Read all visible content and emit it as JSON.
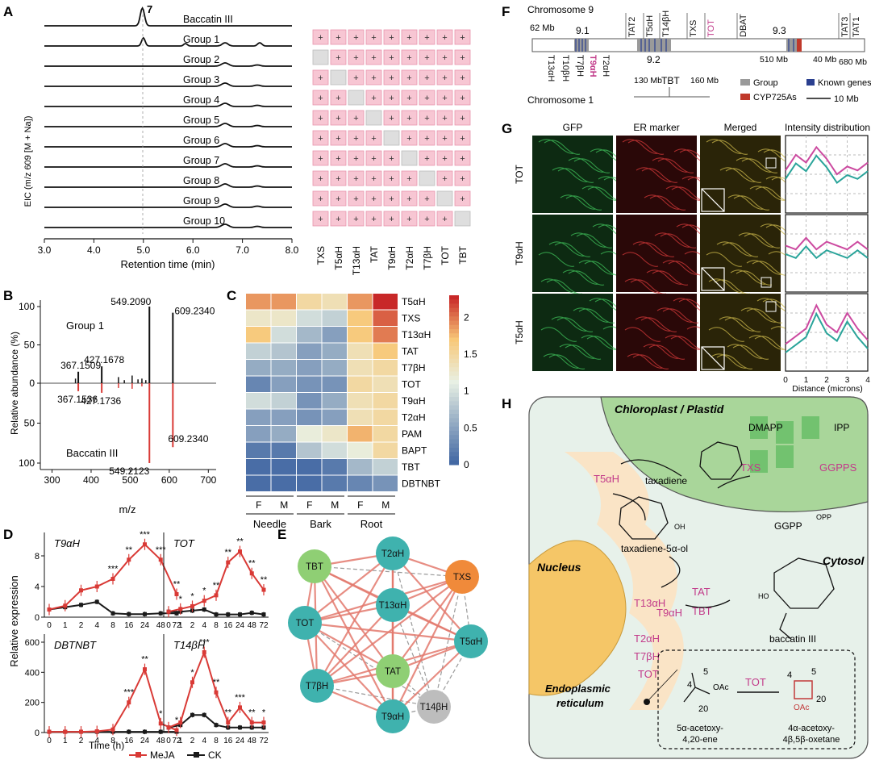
{
  "panels": {
    "A": {
      "label": "A",
      "rows": [
        "Baccatin III",
        "Group 1",
        "Group 2",
        "Group 3",
        "Group 4",
        "Group 5",
        "Group 6",
        "Group 7",
        "Group 8",
        "Group 9",
        "Group 10"
      ],
      "peak_label": "7",
      "ylabel": "EIC (m/z 609 [M + Na])",
      "xlabel": "Retention time (min)",
      "xticks": [
        "3.0",
        "4.0",
        "5.0",
        "6.0",
        "7.0",
        "8.0"
      ],
      "genes": [
        "TXS",
        "T5αH",
        "T13αH",
        "TAT",
        "T9αH",
        "T2αH",
        "T7βH",
        "TOT",
        "TBT"
      ],
      "cell_plus": "+",
      "plus_color": "#f7c6d3",
      "empty_color": "#dedede",
      "missing_index": [
        null,
        0,
        1,
        2,
        3,
        4,
        5,
        6,
        7,
        8
      ]
    },
    "B": {
      "label": "B",
      "top_label": "Group 1",
      "bottom_label": "Baccatin III",
      "ylabel": "Relative abundance (%)",
      "xlabel": "m/z",
      "xticks": [
        "300",
        "400",
        "500",
        "600",
        "700"
      ],
      "yticks": [
        "100",
        "50",
        "0",
        "50",
        "100"
      ],
      "top_peaks": [
        {
          "mz": 367.1509,
          "val": 15,
          "label": "367.1509"
        },
        {
          "mz": 427.1678,
          "val": 22,
          "label": "427.1678"
        },
        {
          "mz": 549.209,
          "val": 100,
          "label": "549.2090"
        },
        {
          "mz": 609.234,
          "val": 92,
          "label": "609.2340"
        }
      ],
      "bottom_peaks": [
        {
          "mz": 367.1536,
          "val": 10,
          "label": "367.1536"
        },
        {
          "mz": 427.1736,
          "val": 12,
          "label": "427.1736"
        },
        {
          "mz": 549.2123,
          "val": 100,
          "label": "549.2123"
        },
        {
          "mz": 609.234,
          "val": 80,
          "label": "609.2340"
        }
      ]
    },
    "C": {
      "label": "C",
      "genes": [
        "T5αH",
        "TXS",
        "T13αH",
        "TAT",
        "T7βH",
        "TOT",
        "T9αH",
        "T2αH",
        "PAM",
        "BAPT",
        "TBT",
        "DBTNBT"
      ],
      "columns": [
        "F",
        "M",
        "F",
        "M",
        "F",
        "M"
      ],
      "groups": [
        "Needle",
        "Bark",
        "Root"
      ],
      "colorbar_ticks": [
        "2",
        "1.5",
        "1",
        "0.5",
        "0"
      ],
      "values": [
        [
          1.9,
          1.9,
          1.5,
          1.4,
          1.9,
          2.3
        ],
        [
          1.3,
          1.3,
          1.0,
          0.9,
          1.7,
          2.1
        ],
        [
          1.7,
          1.0,
          0.7,
          0.5,
          1.7,
          2.0
        ],
        [
          0.9,
          0.8,
          0.5,
          0.6,
          1.4,
          1.7
        ],
        [
          0.6,
          0.6,
          0.5,
          0.6,
          1.4,
          1.5
        ],
        [
          0.3,
          0.5,
          0.4,
          0.4,
          1.5,
          1.4
        ],
        [
          1.0,
          0.9,
          0.4,
          0.6,
          1.4,
          1.5
        ],
        [
          0.5,
          0.5,
          0.4,
          0.5,
          1.4,
          1.5
        ],
        [
          0.5,
          0.6,
          1.2,
          1.3,
          1.8,
          1.5
        ],
        [
          0.2,
          0.2,
          0.8,
          1.0,
          1.2,
          1.5
        ],
        [
          0.1,
          0.1,
          0.1,
          0.2,
          0.7,
          0.9
        ],
        [
          0.1,
          0.1,
          0.1,
          0.2,
          0.3,
          0.4
        ]
      ]
    },
    "D": {
      "label": "D",
      "ylabel": "Relative expression",
      "xlabel": "Time (h)",
      "xticks": [
        "0",
        "1",
        "2",
        "4",
        "8",
        "16",
        "24",
        "48",
        "72"
      ],
      "legend": [
        "MeJA",
        "CK"
      ],
      "colors": {
        "meja": "#d93a36",
        "ck": "#1a1a1a"
      },
      "subplots": [
        {
          "title": "T9αH",
          "ymax": 10,
          "yticks": [
            "4",
            "8"
          ],
          "meja": [
            1,
            1.5,
            3.5,
            4,
            5,
            7.5,
            9.5,
            7.5,
            3
          ],
          "ck": [
            1,
            1.3,
            1.6,
            2,
            0.5,
            0.4,
            0.4,
            0.5,
            0.5
          ],
          "stars": [
            "",
            "",
            "",
            "",
            "***",
            "**",
            "***",
            "***",
            "**"
          ]
        },
        {
          "title": "TOT",
          "ymax": 14,
          "yticks": [],
          "meja": [
            1,
            1.5,
            2,
            3,
            4,
            10,
            12,
            8,
            5
          ],
          "ck": [
            1,
            1,
            1.2,
            1.4,
            0.5,
            0.5,
            0.5,
            0.8,
            0.5
          ],
          "stars": [
            "",
            "*",
            "*",
            "*",
            "**",
            "**",
            "**",
            "**",
            "**"
          ]
        },
        {
          "title": "DBTNBT",
          "ymax": 600,
          "yticks": [
            "200",
            "400",
            "600"
          ],
          "meja": [
            5,
            5,
            5,
            8,
            20,
            200,
            420,
            60,
            15
          ],
          "ck": [
            5,
            5,
            5,
            5,
            5,
            5,
            5,
            5,
            5
          ],
          "stars": [
            "",
            "",
            "",
            "",
            "",
            "***",
            "**",
            "*",
            "*"
          ]
        },
        {
          "title": "T14βH",
          "ymax": 18,
          "yticks": [],
          "meja": [
            1,
            2,
            10,
            16,
            8,
            2,
            5,
            2,
            2
          ],
          "ck": [
            1,
            1.5,
            3.5,
            3.5,
            1.5,
            1,
            1,
            1,
            1
          ],
          "stars": [
            "",
            "",
            "*",
            "***",
            "**",
            "**",
            "***",
            "**",
            "*"
          ]
        }
      ],
      "yaxis_upper_ticks": [
        "0",
        "4",
        "8"
      ],
      "yaxis_lower_ticks": [
        "0",
        "200",
        "400",
        "600"
      ]
    },
    "E": {
      "label": "E",
      "nodes": [
        {
          "id": "T2αH",
          "color": "#3fb2ae"
        },
        {
          "id": "TBT",
          "color": "#8fcf74"
        },
        {
          "id": "TXS",
          "color": "#f08a3a"
        },
        {
          "id": "T13αH",
          "color": "#3fb2ae"
        },
        {
          "id": "TOT",
          "color": "#3fb2ae"
        },
        {
          "id": "T5αH",
          "color": "#3fb2ae"
        },
        {
          "id": "TAT",
          "color": "#8fcf74"
        },
        {
          "id": "T7βH",
          "color": "#3fb2ae"
        },
        {
          "id": "T14βH",
          "color": "#bdbdbd"
        },
        {
          "id": "T9αH",
          "color": "#3fb2ae"
        }
      ]
    },
    "F": {
      "label": "F",
      "chr9_label": "Chromosome 9",
      "chr1_label": "Chromosome 1",
      "top_genes": [
        "TAT2",
        "T5αH",
        "T14βH",
        "TXS",
        "TOT",
        "DBAT",
        "TAT3",
        "TAT1"
      ],
      "bottom_genes": [
        "T13αH",
        "T10βH",
        "T7βH",
        "T9αH",
        "T2αH"
      ],
      "scale_labels": [
        "62 Mb",
        "9.1",
        "9.2",
        "9.3",
        "510 Mb",
        "40 Mb",
        "680 Mb",
        "130 Mb",
        "160 Mb",
        "TBT"
      ],
      "legend": [
        "Group",
        "Known genes",
        "CYP725As",
        "10 Mb"
      ],
      "legend_colors": {
        "group": "#9a9a9a",
        "known": "#2a3f8f",
        "cyp": "#c0392b"
      }
    },
    "G": {
      "label": "G",
      "columns": [
        "GFP",
        "ER marker",
        "Merged",
        "Intensity distribution"
      ],
      "rows": [
        "TOT",
        "T9αH",
        "T5αH"
      ],
      "xlabel": "Distance (microns)",
      "xticks": [
        "0",
        "1",
        "2",
        "3",
        "4"
      ]
    },
    "H": {
      "label": "H",
      "chloroplast": "Chloroplast / Plastid",
      "nucleus": "Nucleus",
      "cytosol": "Cytosol",
      "er": "Endoplasmic reticulum",
      "substrates": [
        "DMAPP",
        "IPP",
        "GGPPS",
        "TXS",
        "taxadiene",
        "GGPP",
        "OPP",
        "T5αH",
        "taxadiene-5α-ol",
        "baccatin III"
      ],
      "enzymes": [
        "T13αH",
        "T9αH",
        "T2αH",
        "T7βH",
        "TOT"
      ],
      "acyl": [
        "TAT",
        "TBT"
      ],
      "inset_left": "5α-acetoxy-4,20-ene",
      "inset_right": "4α-acetoxy-4β,5β-oxetane",
      "inset_enzyme": "TOT",
      "oac": "OAc",
      "oh": "OH",
      "ho": "HO",
      "nums": [
        "4",
        "5",
        "20"
      ]
    }
  }
}
